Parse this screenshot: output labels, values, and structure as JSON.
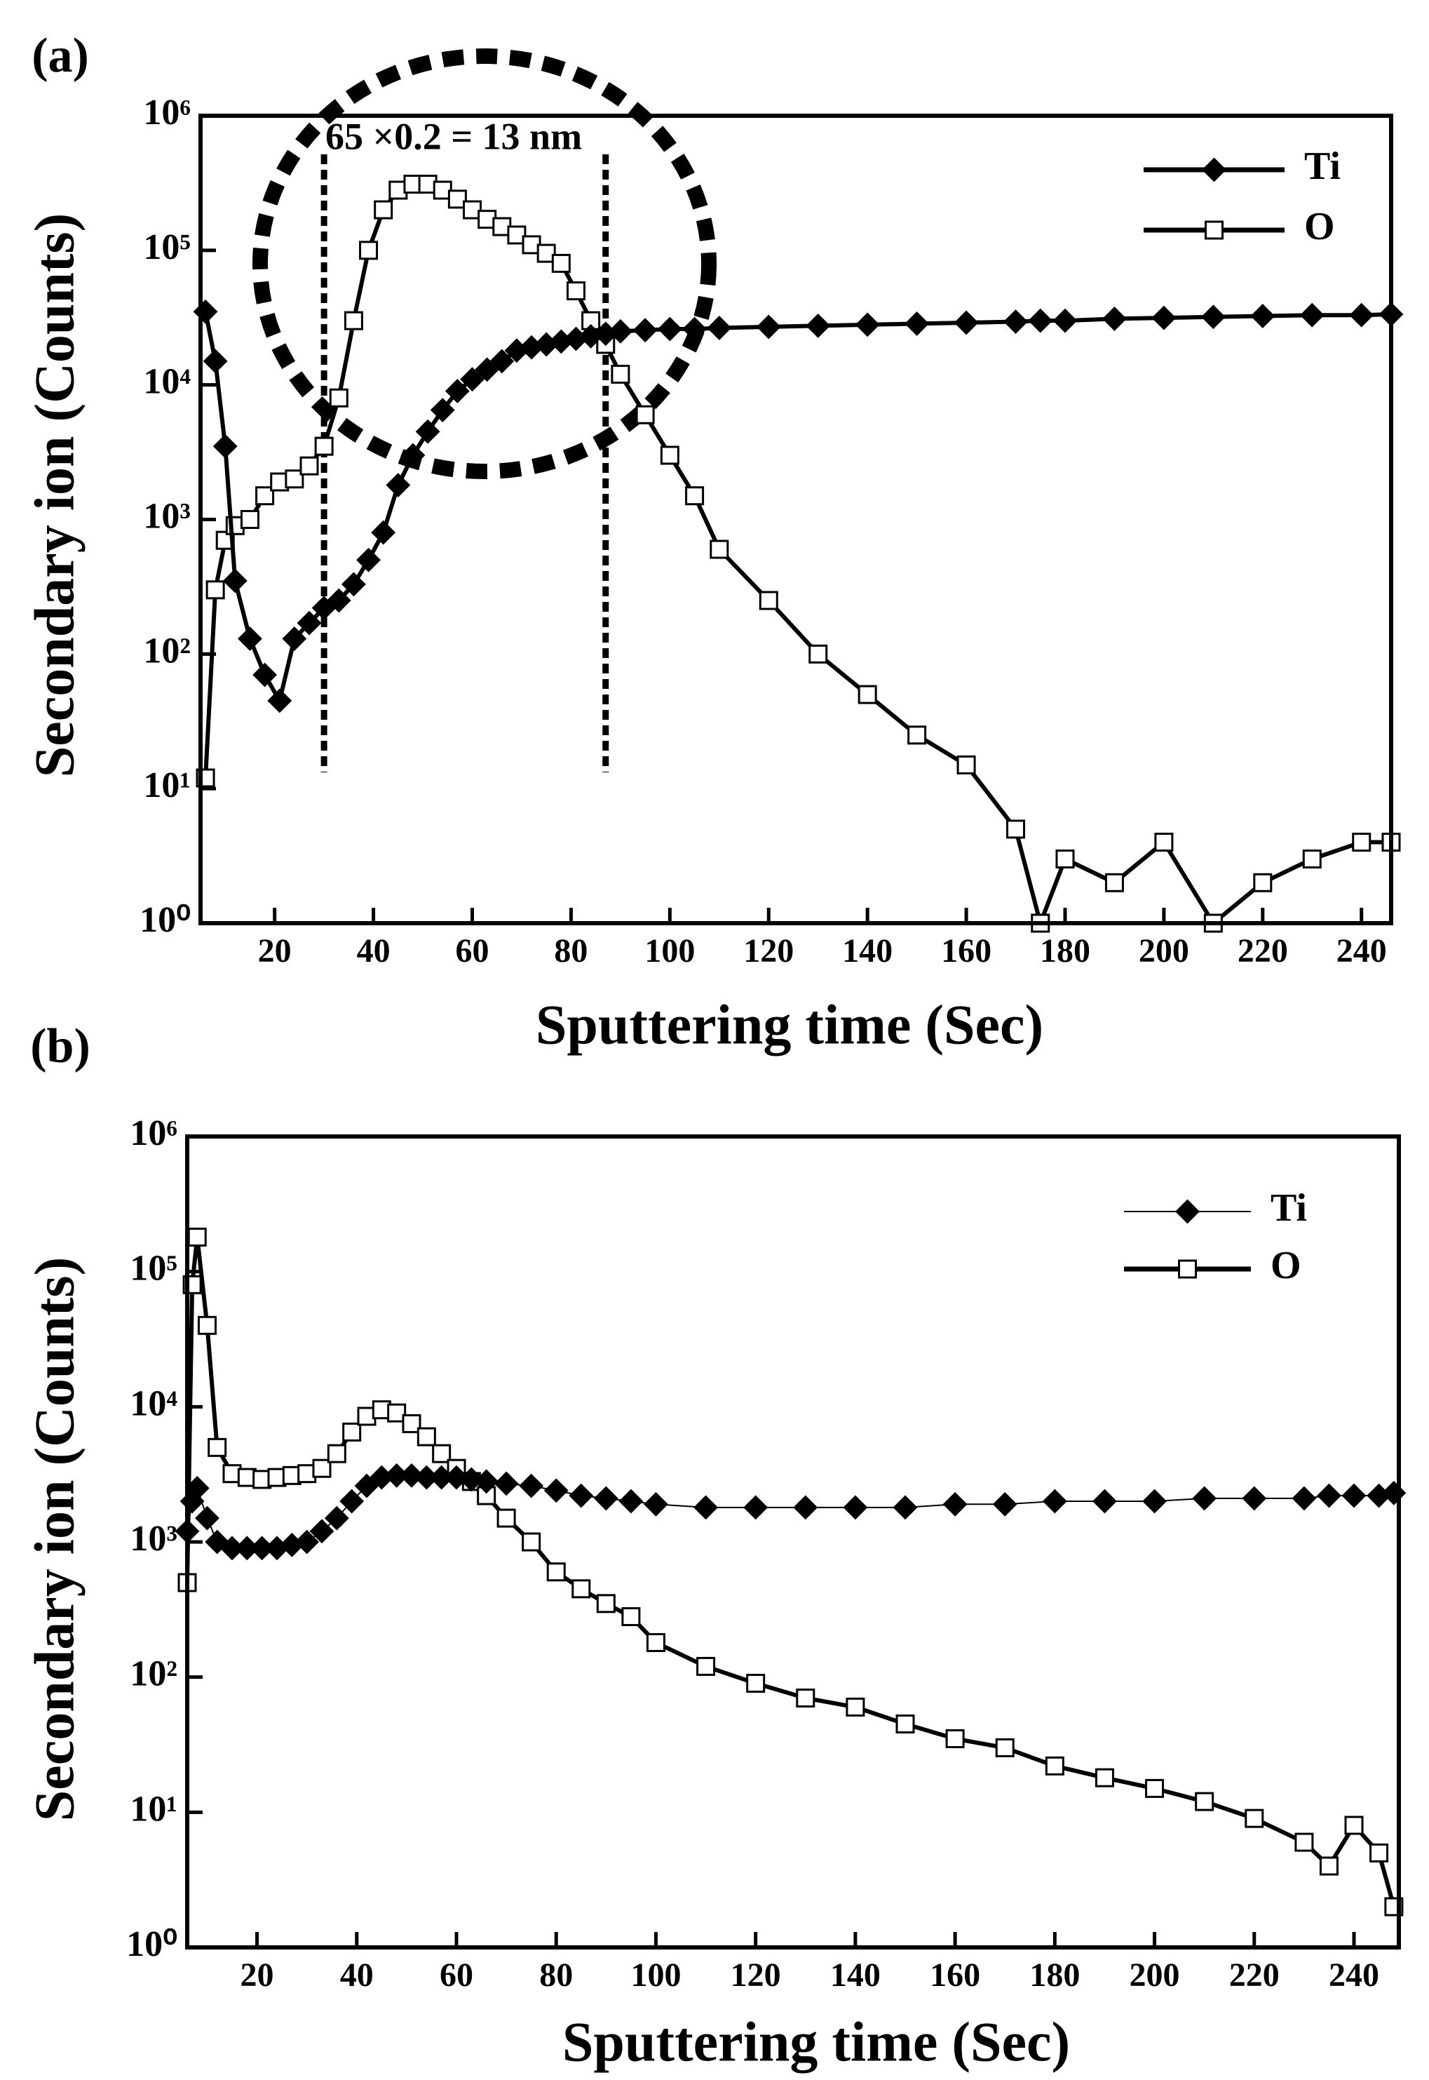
{
  "chart_data": [
    {
      "type": "line",
      "panel_label": "(a)",
      "x_label": "Sputtering time (Sec)",
      "y_label": "Secondary ion (Counts)",
      "annotation": "65 ×0.2 = 13 nm",
      "vlines": [
        30,
        87
      ],
      "log_y": true,
      "xlim": [
        5,
        246
      ],
      "ylim": [
        1,
        1000000
      ],
      "xticks": [
        20,
        40,
        60,
        80,
        100,
        120,
        140,
        160,
        180,
        200,
        220,
        240
      ],
      "yticks": [
        {
          "value": 1,
          "label": "10⁰"
        },
        {
          "value": 10,
          "label": "10¹"
        },
        {
          "value": 100,
          "label": "10²"
        },
        {
          "value": 1000,
          "label": "10³"
        },
        {
          "value": 10000,
          "label": "10⁴"
        },
        {
          "value": 100000,
          "label": "10⁵"
        },
        {
          "value": 1000000,
          "label": "10⁶"
        }
      ],
      "x": [
        6,
        8,
        10,
        12,
        15,
        18,
        21,
        24,
        27,
        30,
        33,
        36,
        39,
        42,
        45,
        48,
        51,
        54,
        57,
        60,
        63,
        66,
        69,
        72,
        75,
        78,
        81,
        84,
        87,
        90,
        95,
        100,
        105,
        110,
        120,
        130,
        140,
        150,
        160,
        170,
        175,
        180,
        190,
        200,
        210,
        220,
        230,
        240,
        246
      ],
      "series": [
        {
          "name": "O",
          "color": "#000000",
          "marker": "open-square",
          "line": "thick",
          "values": [
            12,
            300,
            700,
            900,
            1000,
            1500,
            1900,
            2000,
            2500,
            3500,
            8000,
            30000,
            100000,
            200000,
            280000,
            310000,
            310000,
            280000,
            240000,
            200000,
            170000,
            150000,
            130000,
            110000,
            95000,
            80000,
            50000,
            30000,
            20000,
            12000,
            6000,
            3000,
            1500,
            600,
            250,
            100,
            50,
            25,
            15,
            5,
            1,
            3,
            2,
            4,
            1,
            2,
            3,
            4,
            4
          ]
        },
        {
          "name": "Ti",
          "color": "#000000",
          "marker": "filled-diamond",
          "line": "thick",
          "values": [
            35000,
            15000,
            3500,
            350,
            130,
            70,
            45,
            130,
            170,
            220,
            250,
            330,
            500,
            800,
            1800,
            3000,
            4500,
            6500,
            9000,
            11000,
            13000,
            15000,
            18000,
            19000,
            20000,
            21000,
            22000,
            23000,
            24000,
            25000,
            25500,
            26000,
            26000,
            26500,
            27000,
            27500,
            28000,
            28500,
            29000,
            29500,
            30000,
            30000,
            31000,
            31500,
            32000,
            32500,
            33000,
            33000,
            33500
          ]
        }
      ],
      "legend_order": [
        1,
        0
      ]
    },
    {
      "type": "line",
      "panel_label": "(b)",
      "x_label": "Sputtering time (Sec)",
      "y_label": "Secondary ion (Counts)",
      "log_y": true,
      "xlim": [
        6,
        249
      ],
      "ylim": [
        1,
        1000000
      ],
      "xticks": [
        20,
        40,
        60,
        80,
        100,
        120,
        140,
        160,
        180,
        200,
        220,
        240
      ],
      "yticks": [
        {
          "value": 1,
          "label": "10⁰"
        },
        {
          "value": 10,
          "label": "10¹"
        },
        {
          "value": 100,
          "label": "10²"
        },
        {
          "value": 1000,
          "label": "10³"
        },
        {
          "value": 10000,
          "label": "10⁴"
        },
        {
          "value": 100000,
          "label": "10⁵"
        },
        {
          "value": 1000000,
          "label": "10⁶"
        }
      ],
      "x": [
        6,
        7,
        8,
        10,
        12,
        15,
        18,
        21,
        24,
        27,
        30,
        33,
        36,
        39,
        42,
        45,
        48,
        51,
        54,
        57,
        60,
        63,
        66,
        70,
        75,
        80,
        85,
        90,
        95,
        100,
        110,
        120,
        130,
        140,
        150,
        160,
        170,
        180,
        190,
        200,
        210,
        220,
        230,
        235,
        240,
        245,
        248
      ],
      "series": [
        {
          "name": "O",
          "color": "#000000",
          "marker": "open-square",
          "line": "thick",
          "values": [
            500,
            80000,
            180000,
            40000,
            5000,
            3200,
            3000,
            2900,
            3000,
            3100,
            3200,
            3500,
            4500,
            6500,
            8500,
            9500,
            9000,
            7500,
            6000,
            4500,
            3500,
            2800,
            2200,
            1500,
            1000,
            600,
            450,
            350,
            280,
            180,
            120,
            90,
            70,
            60,
            45,
            35,
            30,
            22,
            18,
            15,
            12,
            9,
            6,
            4,
            8,
            5,
            2
          ]
        },
        {
          "name": "Ti",
          "color": "#000000",
          "marker": "filled-diamond",
          "line": "thin",
          "values": [
            1200,
            2000,
            2500,
            1500,
            1000,
            900,
            900,
            900,
            900,
            950,
            1000,
            1200,
            1500,
            2000,
            2600,
            3000,
            3100,
            3100,
            3000,
            3000,
            3000,
            2900,
            2800,
            2700,
            2600,
            2400,
            2200,
            2100,
            2000,
            1900,
            1800,
            1800,
            1800,
            1800,
            1800,
            1900,
            1900,
            2000,
            2000,
            2000,
            2100,
            2100,
            2100,
            2200,
            2200,
            2200,
            2300
          ]
        }
      ],
      "legend_order": [
        1,
        0
      ]
    }
  ]
}
